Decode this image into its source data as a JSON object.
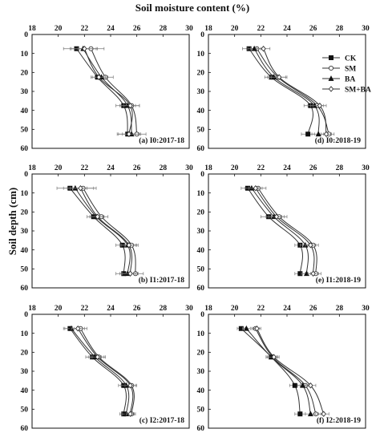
{
  "figure": {
    "x_title": "Soil moisture content (%)",
    "y_title": "Soil depth (cm)",
    "legend": [
      {
        "name": "CK",
        "marker": "square-filled"
      },
      {
        "name": "SM",
        "marker": "circle-open"
      },
      {
        "name": "BA",
        "marker": "triangle-filled"
      },
      {
        "name": "SM+BA",
        "marker": "diamond-open"
      }
    ],
    "colors": {
      "line": "#333333",
      "axis": "#111111",
      "error": "#777777"
    }
  },
  "chart_data": [
    {
      "type": "line",
      "title": "(a) I0:2017-18",
      "xlim": [
        18,
        30
      ],
      "ylim": [
        0,
        60
      ],
      "x_ticks": [
        "18",
        "20",
        "22",
        "24",
        "26",
        "28",
        "30"
      ],
      "y_ticks": [
        "0",
        "10",
        "20",
        "30",
        "40",
        "50",
        "60"
      ],
      "depths": [
        7.5,
        22.5,
        37.5,
        52.5
      ],
      "series": [
        {
          "name": "CK",
          "values": [
            21.4,
            23.0,
            25.0,
            25.3
          ],
          "err": [
            1.0,
            0.5,
            0.6,
            0.8
          ]
        },
        {
          "name": "SM",
          "values": [
            22.5,
            23.6,
            25.6,
            26.0
          ],
          "err": [
            1.0,
            0.6,
            0.6,
            0.7
          ]
        },
        {
          "name": "BA",
          "values": [
            21.9,
            23.3,
            25.3,
            25.6
          ],
          "err": [
            1.0,
            0.5,
            0.6,
            0.7
          ]
        },
        {
          "name": "SM+BA",
          "values": [
            22.0,
            23.1,
            25.5,
            25.4
          ],
          "err": [
            1.0,
            0.5,
            0.7,
            0.8
          ]
        }
      ]
    },
    {
      "type": "line",
      "title": "(d) I0:2018-19",
      "xlim": [
        18,
        30
      ],
      "ylim": [
        0,
        60
      ],
      "x_ticks": [
        "18",
        "20",
        "22",
        "24",
        "26",
        "28",
        "30"
      ],
      "y_ticks": [
        "0",
        "10",
        "20",
        "30",
        "40",
        "50",
        "60"
      ],
      "depths": [
        7.5,
        22.5,
        37.5,
        52.5
      ],
      "series": [
        {
          "name": "CK",
          "values": [
            21.1,
            22.8,
            25.8,
            25.6
          ],
          "err": [
            0.5,
            0.5,
            0.5,
            0.5
          ]
        },
        {
          "name": "SM",
          "values": [
            21.7,
            23.3,
            26.3,
            27.2
          ],
          "err": [
            0.5,
            0.6,
            0.5,
            0.4
          ]
        },
        {
          "name": "BA",
          "values": [
            21.5,
            23.0,
            26.1,
            26.4
          ],
          "err": [
            0.5,
            0.5,
            0.5,
            0.5
          ]
        },
        {
          "name": "SM+BA",
          "values": [
            22.2,
            23.4,
            26.5,
            27.0
          ],
          "err": [
            0.5,
            0.6,
            0.5,
            0.4
          ]
        }
      ]
    },
    {
      "type": "line",
      "title": "(b) I1:2017-18",
      "xlim": [
        18,
        30
      ],
      "ylim": [
        0,
        60
      ],
      "x_ticks": [
        "18",
        "20",
        "22",
        "24",
        "26",
        "28",
        "30"
      ],
      "y_ticks": [
        "0",
        "10",
        "20",
        "30",
        "40",
        "50",
        "60"
      ],
      "depths": [
        7.5,
        22.5,
        37.5,
        52.5
      ],
      "series": [
        {
          "name": "CK",
          "values": [
            20.9,
            22.7,
            24.9,
            25.0
          ],
          "err": [
            1.0,
            0.5,
            0.5,
            0.6
          ]
        },
        {
          "name": "SM",
          "values": [
            21.9,
            23.3,
            25.6,
            25.9
          ],
          "err": [
            1.0,
            0.5,
            0.5,
            0.6
          ]
        },
        {
          "name": "BA",
          "values": [
            21.3,
            22.9,
            25.3,
            25.3
          ],
          "err": [
            0.9,
            0.5,
            0.6,
            0.6
          ]
        },
        {
          "name": "SM+BA",
          "values": [
            21.7,
            23.0,
            25.4,
            25.5
          ],
          "err": [
            1.0,
            0.5,
            0.6,
            0.6
          ]
        }
      ]
    },
    {
      "type": "line",
      "title": "(e) I1:2018-19",
      "xlim": [
        18,
        30
      ],
      "ylim": [
        0,
        60
      ],
      "x_ticks": [
        "18",
        "20",
        "22",
        "24",
        "26",
        "28",
        "30"
      ],
      "y_ticks": [
        "0",
        "10",
        "20",
        "30",
        "40",
        "50",
        "60"
      ],
      "depths": [
        7.5,
        22.5,
        37.5,
        52.5
      ],
      "series": [
        {
          "name": "CK",
          "values": [
            21.0,
            22.6,
            25.0,
            25.0
          ],
          "err": [
            0.5,
            0.6,
            0.4,
            0.4
          ]
        },
        {
          "name": "SM",
          "values": [
            21.8,
            23.4,
            26.0,
            26.2
          ],
          "err": [
            0.6,
            0.6,
            0.4,
            0.4
          ]
        },
        {
          "name": "BA",
          "values": [
            21.3,
            23.0,
            25.4,
            25.5
          ],
          "err": [
            0.5,
            0.6,
            0.4,
            0.4
          ]
        },
        {
          "name": "SM+BA",
          "values": [
            21.6,
            23.2,
            25.8,
            26.0
          ],
          "err": [
            0.5,
            0.6,
            0.4,
            0.4
          ]
        }
      ]
    },
    {
      "type": "line",
      "title": "(c) I2:2017-18",
      "xlim": [
        18,
        30
      ],
      "ylim": [
        0,
        60
      ],
      "x_ticks": [
        "18",
        "20",
        "22",
        "24",
        "26",
        "28",
        "30"
      ],
      "y_ticks": [
        "0",
        "10",
        "20",
        "30",
        "40",
        "50",
        "60"
      ],
      "depths": [
        7.5,
        22.5,
        37.5,
        52.5
      ],
      "series": [
        {
          "name": "CK",
          "values": [
            20.9,
            22.6,
            25.0,
            25.0
          ],
          "err": [
            0.5,
            0.5,
            0.4,
            0.3
          ]
        },
        {
          "name": "SM",
          "values": [
            21.7,
            23.1,
            25.6,
            25.6
          ],
          "err": [
            0.5,
            0.5,
            0.4,
            0.3
          ]
        },
        {
          "name": "BA",
          "values": [
            21.0,
            22.8,
            25.2,
            25.2
          ],
          "err": [
            0.5,
            0.5,
            0.4,
            0.3
          ]
        },
        {
          "name": "SM+BA",
          "values": [
            21.5,
            23.0,
            25.5,
            25.5
          ],
          "err": [
            0.5,
            0.5,
            0.4,
            0.3
          ]
        }
      ]
    },
    {
      "type": "line",
      "title": "(f) I2:2018-19",
      "xlim": [
        18,
        30
      ],
      "ylim": [
        0,
        60
      ],
      "x_ticks": [
        "18",
        "20",
        "22",
        "24",
        "26",
        "28",
        "30"
      ],
      "y_ticks": [
        "0",
        "10",
        "20",
        "30",
        "40",
        "50",
        "60"
      ],
      "depths": [
        7.5,
        22.5,
        37.5,
        52.5
      ],
      "series": [
        {
          "name": "CK",
          "values": [
            20.5,
            22.8,
            24.6,
            25.0
          ],
          "err": [
            0.3,
            0.4,
            0.4,
            0.4
          ]
        },
        {
          "name": "SM",
          "values": [
            21.6,
            22.9,
            25.4,
            26.2
          ],
          "err": [
            0.3,
            0.4,
            0.4,
            0.4
          ]
        },
        {
          "name": "BA",
          "values": [
            20.9,
            22.8,
            25.2,
            25.8
          ],
          "err": [
            0.3,
            0.4,
            0.4,
            0.4
          ]
        },
        {
          "name": "SM+BA",
          "values": [
            21.7,
            23.0,
            25.8,
            26.8
          ],
          "err": [
            0.3,
            0.4,
            0.4,
            0.4
          ]
        }
      ]
    }
  ]
}
